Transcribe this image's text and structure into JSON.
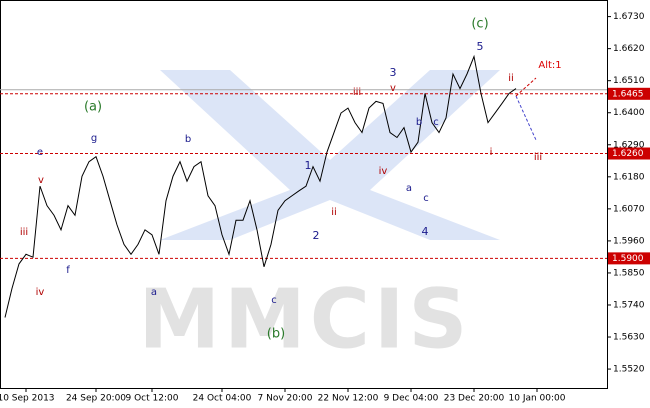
{
  "chart_data": {
    "type": "line",
    "categories": [
      null,
      null,
      null,
      "10 Sep 2013",
      null,
      null,
      null,
      null,
      null,
      null,
      null,
      null,
      null,
      "24 Sep 20:00",
      null,
      null,
      null,
      null,
      null,
      null,
      null,
      "9 Oct 12:00",
      null,
      null,
      null,
      null,
      null,
      null,
      null,
      null,
      null,
      "24 Oct 04:00",
      null,
      null,
      null,
      null,
      null,
      null,
      null,
      null,
      "7 Nov 20:00",
      null,
      null,
      null,
      null,
      null,
      null,
      null,
      null,
      "22 Nov 12:00",
      null,
      null,
      null,
      null,
      null,
      null,
      null,
      null,
      "9 Dec 04:00",
      null,
      null,
      null,
      null,
      null,
      null,
      null,
      null,
      "23 Dec 20:00",
      null,
      null,
      null,
      null,
      null,
      null,
      null,
      null,
      "10 Jan 00:00",
      null,
      null,
      null,
      null,
      null,
      null,
      null,
      null,
      null
    ],
    "series": [
      {
        "name": "Price",
        "color": "#000000",
        "values": [
          1.5697,
          1.5797,
          1.5881,
          1.5914,
          1.5904,
          1.6148,
          1.6081,
          1.6048,
          1.5998,
          1.6081,
          1.6048,
          1.6182,
          1.6232,
          1.6249,
          1.6182,
          1.6098,
          1.6015,
          1.5948,
          1.5914,
          1.5948,
          1.5998,
          1.5981,
          1.5914,
          1.6098,
          1.6182,
          1.6232,
          1.6165,
          1.6215,
          1.6232,
          1.6115,
          1.6081,
          1.5981,
          1.5914,
          1.6031,
          1.6031,
          1.6098,
          1.5998,
          1.5871,
          1.5948,
          1.6065,
          1.6098,
          1.6115,
          1.6132,
          1.6148,
          1.6215,
          1.6165,
          1.6265,
          1.6332,
          1.6399,
          1.6416,
          1.6366,
          1.6332,
          1.6416,
          1.6439,
          1.6432,
          1.6332,
          1.6315,
          1.6349,
          1.6265,
          1.6299,
          1.6466,
          1.6366,
          1.6332,
          1.6382,
          1.6533,
          1.6483,
          1.6533,
          1.6593,
          1.6466,
          1.6366,
          1.6399,
          1.6432,
          1.6466,
          1.6483,
          null,
          null,
          null,
          null,
          null,
          null,
          null,
          null,
          null,
          null,
          null,
          null
        ]
      }
    ],
    "ylim": [
      1.5455,
      1.6787
    ],
    "yticks": [
      {
        "value": 1.552,
        "label": "1.5520"
      },
      {
        "value": 1.563,
        "label": "1.5630"
      },
      {
        "value": 1.574,
        "label": "1.5740"
      },
      {
        "value": 1.585,
        "label": "1.5850"
      },
      {
        "value": 1.596,
        "label": "1.5960"
      },
      {
        "value": 1.607,
        "label": "1.6070"
      },
      {
        "value": 1.618,
        "label": "1.6180"
      },
      {
        "value": 1.629,
        "label": "1.6290"
      },
      {
        "value": 1.64,
        "label": "1.6400"
      },
      {
        "value": 1.651,
        "label": "1.6510"
      },
      {
        "value": 1.662,
        "label": "1.6620"
      },
      {
        "value": 1.673,
        "label": "1.6730"
      }
    ],
    "levels": [
      1.6465,
      {
        "value": 1.626,
        "label": "1.6260"
      },
      {
        "value": 1.59,
        "label": "1.5900"
      }
    ],
    "level_color": "#cc0000",
    "grid": false,
    "watermark": "MMCIS",
    "annotations": [
      "(c)",
      "5",
      "Alt:1",
      "ii",
      "3",
      "v",
      "iii",
      "(a)",
      "g",
      "b",
      "e",
      "b",
      "c",
      "i",
      "iii",
      "1",
      "iv",
      "v",
      "a",
      "c",
      "ii",
      "iii",
      "4",
      "2",
      "f",
      "iv",
      "a",
      "c",
      "(b)"
    ]
  }
}
